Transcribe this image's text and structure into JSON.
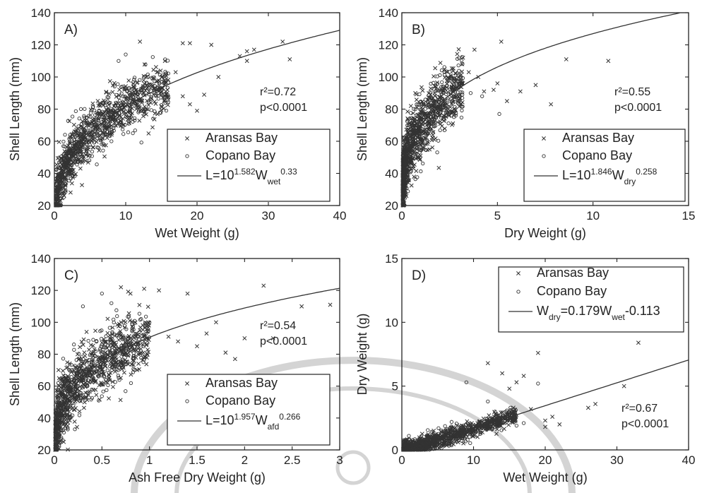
{
  "chart_data": [
    {
      "id": "A",
      "type": "scatter",
      "panel_label": "A)",
      "xlabel": "Wet Weight (g)",
      "ylabel": "Shell Length (mm)",
      "xlim": [
        0,
        40
      ],
      "ylim": [
        20,
        140
      ],
      "xticks": [
        "0",
        "10",
        "20",
        "30",
        "40"
      ],
      "yticks": [
        "20",
        "40",
        "60",
        "80",
        "100",
        "120",
        "140"
      ],
      "stats": {
        "r2_label": "r²=0.72",
        "p_label": "p<0.0001"
      },
      "legend": {
        "placement": "lower-right",
        "aransas": "Aransas Bay",
        "copano": "Copano Bay",
        "fit": "L=10^1.582 W_wet^0.33"
      },
      "fit": {
        "a": 38.2,
        "b": 0.33,
        "label": "L=10^1.582 W_wet^0.33"
      },
      "cloud": {
        "x_min": 0.2,
        "x_max": 16,
        "x_shape": 1.6,
        "sd": 8
      },
      "series": [
        {
          "name": "Aransas Bay",
          "marker": "x",
          "points": [
            [
              15.5,
              110
            ],
            [
              17,
              103
            ],
            [
              18,
              121
            ],
            [
              19,
              121
            ],
            [
              20,
              79
            ],
            [
              22,
              120
            ],
            [
              23,
              100
            ],
            [
              26,
              113
            ],
            [
              27,
              116
            ],
            [
              27,
              110
            ],
            [
              28,
              117
            ],
            [
              32,
              122
            ],
            [
              33,
              111
            ],
            [
              19,
              83
            ],
            [
              18,
              88
            ],
            [
              21,
              89
            ],
            [
              12,
              122
            ],
            [
              14,
              93
            ]
          ]
        },
        {
          "name": "Copano Bay",
          "marker": "o",
          "points": [
            [
              8,
              60
            ],
            [
              9,
              110
            ],
            [
              10,
              114
            ],
            [
              11,
              65
            ],
            [
              13,
              96
            ],
            [
              15,
              89
            ]
          ]
        }
      ]
    },
    {
      "id": "B",
      "type": "scatter",
      "panel_label": "B)",
      "xlabel": "Dry Weight (g)",
      "ylabel": "Shell Length (mm)",
      "xlim": [
        0,
        15
      ],
      "ylim": [
        20,
        140
      ],
      "xticks": [
        "0",
        "5",
        "10",
        "15"
      ],
      "yticks": [
        "20",
        "40",
        "60",
        "80",
        "100",
        "120",
        "140"
      ],
      "stats": {
        "r2_label": "r²=0.55",
        "p_label": "p<0.0001"
      },
      "legend": {
        "placement": "lower-right",
        "aransas": "Aransas Bay",
        "copano": "Copano Bay",
        "fit": "L=10^1.846 W_dry^0.258"
      },
      "fit": {
        "a": 70.1,
        "b": 0.258,
        "label": "L=10^1.846 W_dry^0.258"
      },
      "cloud": {
        "x_min": 0.05,
        "x_max": 3.2,
        "x_shape": 2.2,
        "sd": 10
      },
      "series": [
        {
          "name": "Aransas Bay",
          "marker": "x",
          "points": [
            [
              3.2,
              112
            ],
            [
              3.8,
              117
            ],
            [
              4,
              100
            ],
            [
              4.3,
              91
            ],
            [
              4.8,
              92
            ],
            [
              5.2,
              122
            ],
            [
              5.5,
              85
            ],
            [
              6.2,
              91
            ],
            [
              7,
              95
            ],
            [
              7.8,
              83
            ],
            [
              8.6,
              111
            ],
            [
              10.8,
              110
            ],
            [
              3,
              95
            ],
            [
              3.5,
              103
            ],
            [
              5,
              96
            ]
          ]
        },
        {
          "name": "Copano Bay",
          "marker": "o",
          "points": [
            [
              2.5,
              78
            ],
            [
              3,
              85
            ],
            [
              4.2,
              88
            ],
            [
              5.1,
              77
            ],
            [
              3.6,
              90
            ]
          ]
        }
      ]
    },
    {
      "id": "C",
      "type": "scatter",
      "panel_label": "C)",
      "xlabel": "Ash Free Dry Weight (g)",
      "ylabel": "Shell Length (mm)",
      "xlim": [
        0,
        3
      ],
      "ylim": [
        20,
        140
      ],
      "xticks": [
        "0",
        "0.5",
        "1",
        "1.5",
        "2",
        "2.5",
        "3"
      ],
      "yticks": [
        "20",
        "40",
        "60",
        "80",
        "100",
        "120",
        "140"
      ],
      "stats": {
        "r2_label": "r²=0.54",
        "p_label": "p<0.0001"
      },
      "legend": {
        "placement": "lower-right",
        "aransas": "Aransas Bay",
        "copano": "Copano Bay",
        "fit": "L=10^1.957 W_afd^0.266"
      },
      "fit": {
        "a": 90.6,
        "b": 0.266,
        "label": "L=10^1.957 W_afd^0.266"
      },
      "cloud": {
        "x_min": 0.01,
        "x_max": 1.0,
        "x_shape": 1.8,
        "sd": 10
      },
      "series": [
        {
          "name": "Aransas Bay",
          "marker": "x",
          "points": [
            [
              0.9,
              95
            ],
            [
              1.1,
              120
            ],
            [
              1.2,
              91
            ],
            [
              1.3,
              88
            ],
            [
              1.4,
              118
            ],
            [
              1.5,
              85
            ],
            [
              1.7,
              100
            ],
            [
              1.8,
              81
            ],
            [
              1.9,
              77
            ],
            [
              2.0,
              90
            ],
            [
              2.2,
              123
            ],
            [
              2.3,
              90
            ],
            [
              2.6,
              110
            ],
            [
              2.9,
              111
            ],
            [
              1.6,
              93
            ],
            [
              0.8,
              118
            ],
            [
              0.7,
              122
            ]
          ]
        },
        {
          "name": "Copano Bay",
          "marker": "o",
          "points": [
            [
              0.3,
              110
            ],
            [
              0.5,
              118
            ],
            [
              0.8,
              87
            ],
            [
              1.0,
              100
            ],
            [
              0.6,
              112
            ]
          ]
        }
      ]
    },
    {
      "id": "D",
      "type": "scatter",
      "panel_label": "D)",
      "xlabel": "Wet Weight (g)",
      "ylabel": "Dry Weight (g)",
      "xlim": [
        0,
        40
      ],
      "ylim": [
        0,
        15
      ],
      "xticks": [
        "0",
        "10",
        "20",
        "30",
        "40"
      ],
      "yticks": [
        "0",
        "5",
        "10",
        "15"
      ],
      "stats": {
        "r2_label": "r²=0.67",
        "p_label": "p<0.0001"
      },
      "legend": {
        "placement": "top",
        "aransas": "Aransas Bay",
        "copano": "Copano Bay",
        "fit": "W_dry=0.179W_wet-0.113"
      },
      "fit": {
        "slope": 0.179,
        "intercept": -0.113,
        "label": "W_dry=0.179W_wet-0.113"
      },
      "cloud": {
        "x_min": 0.2,
        "x_max": 16,
        "x_shape": 1.6,
        "sd": 0.35
      },
      "series": [
        {
          "name": "Aransas Bay",
          "marker": "x",
          "points": [
            [
              12,
              6.8
            ],
            [
              14,
              6.0
            ],
            [
              15,
              4.8
            ],
            [
              16,
              5.3
            ],
            [
              17,
              5.8
            ],
            [
              18,
              3.2
            ],
            [
              19,
              7.6
            ],
            [
              20,
              2.3
            ],
            [
              21,
              2.6
            ],
            [
              22,
              2.0
            ],
            [
              26,
              3.3
            ],
            [
              27,
              3.6
            ],
            [
              31,
              5.0
            ],
            [
              33,
              8.4
            ],
            [
              20,
              1.8
            ]
          ]
        },
        {
          "name": "Copano Bay",
          "marker": "o",
          "points": [
            [
              9,
              5.3
            ],
            [
              12,
              3.8
            ],
            [
              13,
              3.0
            ],
            [
              14,
              2.5
            ],
            [
              16,
              1.9
            ],
            [
              17,
              2.1
            ],
            [
              19,
              5.2
            ]
          ]
        }
      ]
    }
  ]
}
